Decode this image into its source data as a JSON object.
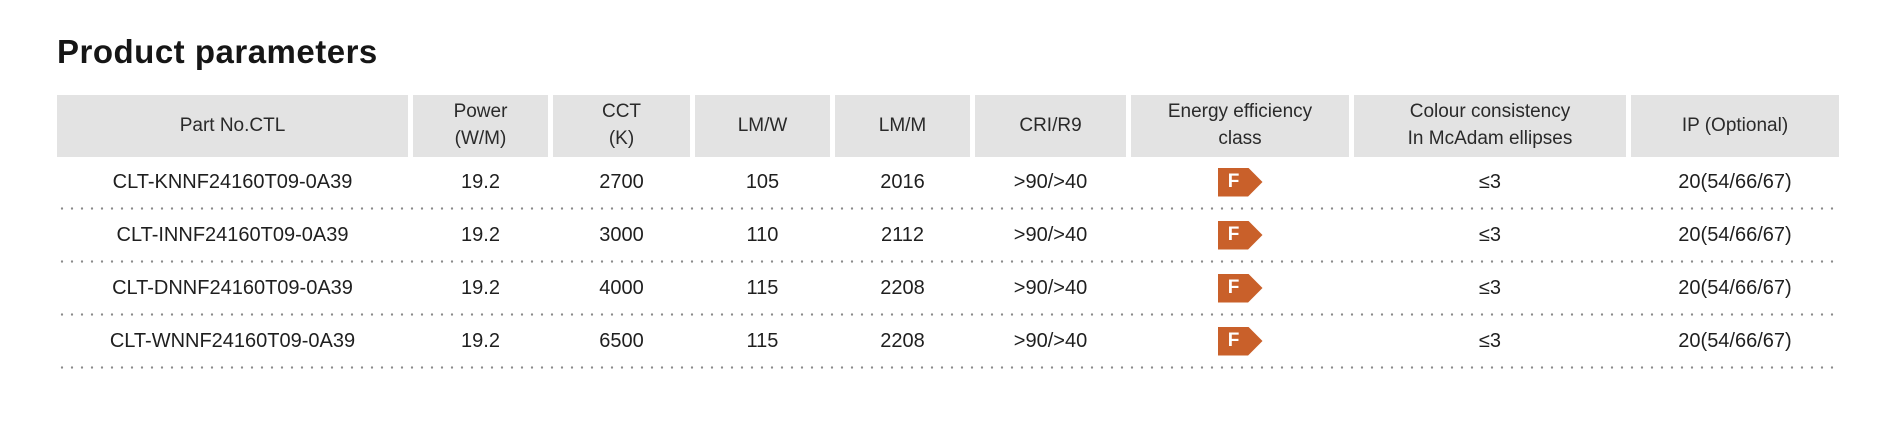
{
  "page": {
    "title": "Product parameters"
  },
  "colors": {
    "header_background": "#e3e3e3",
    "energy_badge_orange": "#c9602a",
    "text": "#1f1f1f",
    "dotted_separator": "#8a8a8a"
  },
  "table": {
    "columns": [
      {
        "lines": [
          "Part No.CTL"
        ]
      },
      {
        "lines": [
          "Power",
          "(W/M)"
        ]
      },
      {
        "lines": [
          "CCT",
          "(K)"
        ]
      },
      {
        "lines": [
          "LM/W"
        ]
      },
      {
        "lines": [
          "LM/M"
        ]
      },
      {
        "lines": [
          "CRI/R9"
        ]
      },
      {
        "lines": [
          "Energy efficiency",
          "class"
        ]
      },
      {
        "lines": [
          "Colour consistency",
          "In McAdam ellipses"
        ]
      },
      {
        "lines": [
          "IP (Optional)"
        ]
      }
    ],
    "rows": [
      {
        "part_no": "CLT-KNNF24160T09-0A39",
        "power": "19.2",
        "cct": "2700",
        "lm_w": "105",
        "lm_m": "2016",
        "cri_r9": ">90/>40",
        "energy_class": "F",
        "colour_consistency": "≤3",
        "ip": "20(54/66/67)"
      },
      {
        "part_no": "CLT-INNF24160T09-0A39",
        "power": "19.2",
        "cct": "3000",
        "lm_w": "110",
        "lm_m": "2112",
        "cri_r9": ">90/>40",
        "energy_class": "F",
        "colour_consistency": "≤3",
        "ip": "20(54/66/67)"
      },
      {
        "part_no": "CLT-DNNF24160T09-0A39",
        "power": "19.2",
        "cct": "4000",
        "lm_w": "115",
        "lm_m": "2208",
        "cri_r9": ">90/>40",
        "energy_class": "F",
        "colour_consistency": "≤3",
        "ip": "20(54/66/67)"
      },
      {
        "part_no": "CLT-WNNF24160T09-0A39",
        "power": "19.2",
        "cct": "6500",
        "lm_w": "115",
        "lm_m": "2208",
        "cri_r9": ">90/>40",
        "energy_class": "F",
        "colour_consistency": "≤3",
        "ip": "20(54/66/67)"
      }
    ]
  }
}
